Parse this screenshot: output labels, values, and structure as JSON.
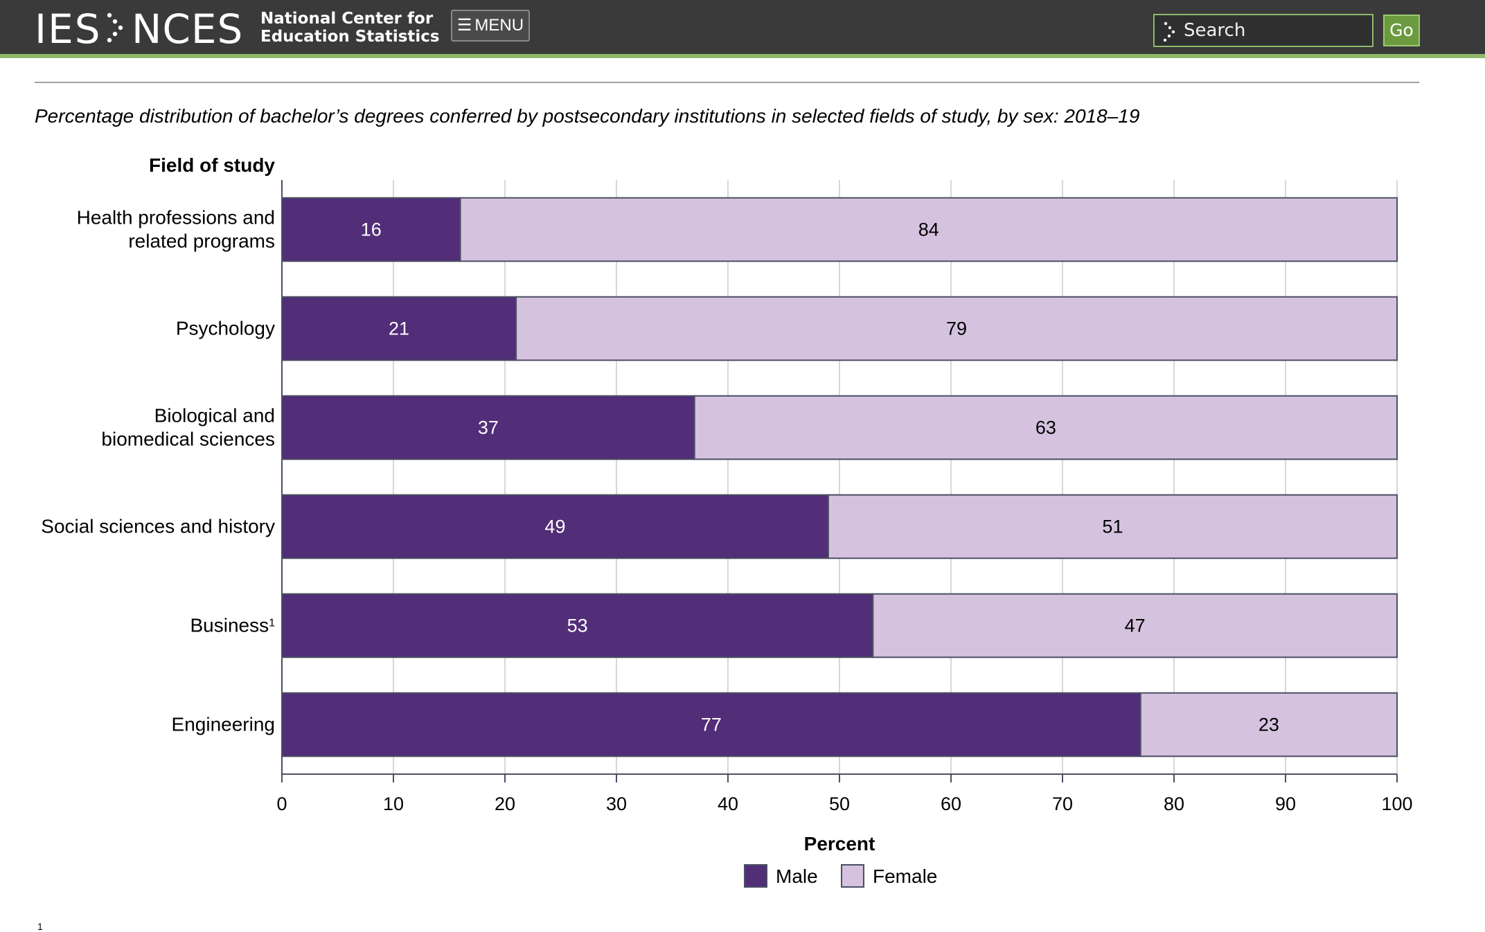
{
  "header": {
    "logo_ies": "IES",
    "logo_nces": "NCES",
    "org_name_line1": "National Center for",
    "org_name_line2": "Education Statistics",
    "menu_label": "MENU",
    "search_placeholder": "Search",
    "go_label": "Go",
    "accent_color": "#8fb96a"
  },
  "chart_title": "Percentage distribution of bachelor’s degrees conferred by postsecondary institutions in selected fields of study, by sex: 2018–19",
  "footnote_marker": "1",
  "chart_data": {
    "type": "bar",
    "orientation": "horizontal",
    "stacked": true,
    "title": "Percentage distribution of bachelor’s degrees conferred by postsecondary institutions in selected fields of study, by sex: 2018–19",
    "xlabel": "Percent",
    "ylabel": "Field of study",
    "xlim": [
      0,
      100
    ],
    "xticks": [
      "0",
      "10",
      "20",
      "30",
      "40",
      "50",
      "60",
      "70",
      "80",
      "90",
      "100"
    ],
    "grid": true,
    "legend_position": "bottom-center",
    "categories": [
      [
        "Health professions and",
        "related programs"
      ],
      [
        "Psychology"
      ],
      [
        "Biological and",
        "biomedical sciences"
      ],
      [
        "Social sciences and history"
      ],
      [
        "Business"
      ],
      [
        "Engineering"
      ]
    ],
    "category_superscripts": [
      "",
      "",
      "",
      "",
      "1",
      ""
    ],
    "series": [
      {
        "name": "Male",
        "color": "#522d78",
        "label_color": "#ffffff",
        "values": [
          16,
          21,
          37,
          49,
          53,
          77
        ]
      },
      {
        "name": "Female",
        "color": "#d5c2df",
        "label_color": "#000000",
        "values": [
          84,
          79,
          63,
          51,
          47,
          23
        ]
      }
    ]
  }
}
